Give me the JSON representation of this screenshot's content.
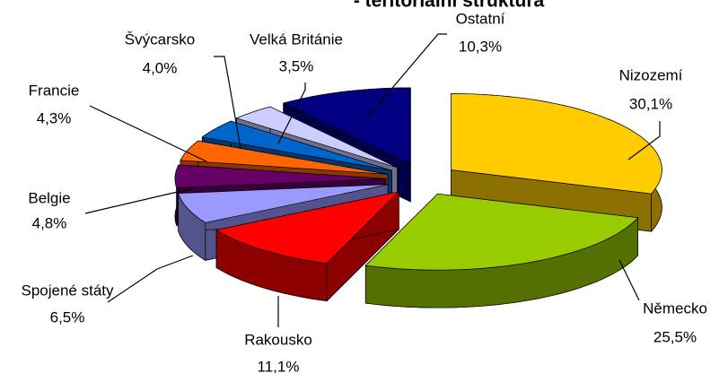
{
  "chart_data": {
    "type": "pie3d",
    "title": "- teritoriální struktura",
    "categories": [
      "Nizozemí",
      "Německo",
      "Rakousko",
      "Spojené státy",
      "Belgie",
      "Francie",
      "Švýcarsko",
      "Velká Británie",
      "Ostatní"
    ],
    "values": [
      30.1,
      25.5,
      11.1,
      6.5,
      4.8,
      4.3,
      4.0,
      3.5,
      10.3
    ],
    "value_labels": [
      "30,1%",
      "25,5%",
      "11,1%",
      "6,5%",
      "4,8%",
      "4,3%",
      "4,0%",
      "3,5%",
      "10,3%"
    ],
    "colors": [
      "#ffcc00",
      "#99cc00",
      "#ff0000",
      "#9999ff",
      "#660066",
      "#ff6600",
      "#0066cc",
      "#ccccff",
      "#000080"
    ]
  }
}
